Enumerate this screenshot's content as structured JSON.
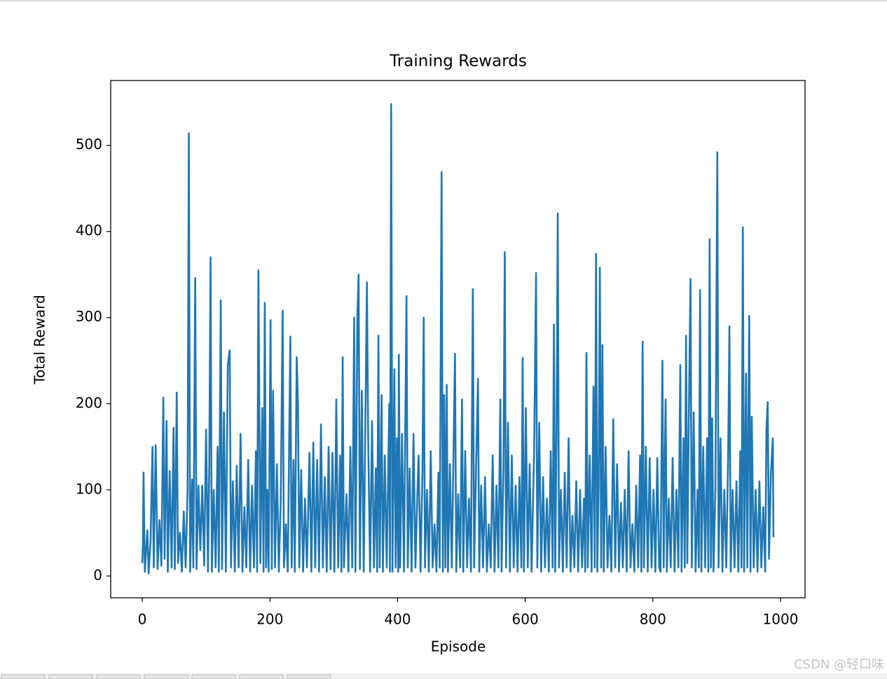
{
  "chart_data": {
    "type": "line",
    "title": "Training Rewards",
    "x_label": "Episode",
    "y_label": "Total Reward",
    "watermark": "CSDN @轻口味",
    "xlim": [
      -49.45,
      1038.45
    ],
    "ylim": [
      -25.3,
      575.3
    ],
    "xticks": [
      0,
      200,
      400,
      600,
      800,
      1000
    ],
    "yticks": [
      0,
      100,
      200,
      300,
      400,
      500
    ],
    "x": [
      0,
      1,
      2,
      4,
      6,
      8,
      10,
      13,
      16,
      18,
      21,
      24,
      27,
      30,
      33,
      35,
      38,
      40,
      43,
      46,
      49,
      51,
      54,
      56,
      59,
      62,
      65,
      68,
      71,
      73,
      75,
      78,
      80,
      83,
      85,
      88,
      91,
      94,
      97,
      100,
      103,
      105,
      107,
      109,
      112,
      115,
      118,
      120,
      123,
      125,
      128,
      131,
      134,
      137,
      139,
      142,
      145,
      148,
      151,
      154,
      157,
      160,
      163,
      166,
      169,
      172,
      175,
      178,
      180,
      182,
      185,
      188,
      190,
      192,
      194,
      196,
      198,
      201,
      203,
      205,
      208,
      211,
      214,
      217,
      220,
      222,
      225,
      228,
      232,
      234,
      237,
      239,
      242,
      244,
      246,
      249,
      252,
      255,
      258,
      262,
      265,
      268,
      271,
      274,
      277,
      280,
      283,
      286,
      289,
      292,
      295,
      298,
      301,
      304,
      307,
      310,
      312,
      314,
      316,
      320,
      323,
      326,
      329,
      332,
      334,
      337,
      339,
      341,
      344,
      347,
      352,
      354,
      357,
      360,
      363,
      366,
      368,
      370,
      372,
      375,
      377,
      380,
      383,
      387,
      388,
      390,
      392,
      395,
      397,
      399,
      401,
      402,
      404,
      407,
      410,
      414,
      416,
      419,
      422,
      425,
      428,
      431,
      433,
      436,
      439,
      441,
      443,
      446,
      449,
      452,
      455,
      458,
      461,
      464,
      466,
      469,
      471,
      473,
      475,
      477,
      479,
      482,
      485,
      488,
      490,
      492,
      495,
      498,
      501,
      503,
      506,
      509,
      512,
      515,
      518,
      520,
      523,
      526,
      528,
      531,
      534,
      537,
      540,
      543,
      546,
      549,
      552,
      555,
      558,
      561,
      563,
      566,
      568,
      570,
      573,
      576,
      579,
      582,
      585,
      588,
      591,
      594,
      596,
      598,
      601,
      604,
      607,
      610,
      614,
      617,
      619,
      622,
      625,
      628,
      631,
      634,
      637,
      640,
      643,
      645,
      647,
      649,
      651,
      653,
      656,
      659,
      662,
      665,
      668,
      671,
      674,
      677,
      680,
      683,
      686,
      689,
      692,
      694,
      696,
      698,
      701,
      704,
      707,
      709,
      711,
      713,
      715,
      717,
      719,
      721,
      723,
      726,
      729,
      732,
      735,
      738,
      741,
      744,
      747,
      750,
      753,
      756,
      759,
      762,
      765,
      768,
      771,
      774,
      777,
      780,
      782,
      784,
      786,
      789,
      792,
      795,
      798,
      801,
      804,
      807,
      810,
      812,
      815,
      817,
      820,
      822,
      825,
      828,
      831,
      834,
      837,
      840,
      843,
      845,
      848,
      850,
      852,
      854,
      856,
      859,
      861,
      864,
      867,
      870,
      872,
      874,
      876,
      879,
      882,
      885,
      887,
      889,
      891,
      893,
      895,
      898,
      901,
      903,
      906,
      909,
      912,
      915,
      918,
      920,
      922,
      925,
      928,
      931,
      934,
      937,
      939,
      941,
      943,
      946,
      948,
      951,
      953,
      955,
      958,
      961,
      964,
      967,
      970,
      973,
      976,
      978,
      980,
      982,
      985,
      988,
      989
    ],
    "series": [
      {
        "name": "Total Reward",
        "color": "#1f77b4",
        "values": [
          15,
          35,
          120,
          5,
          30,
          53,
          3,
          40,
          150,
          10,
          152,
          8,
          65,
          12,
          207,
          20,
          180,
          5,
          122,
          10,
          172,
          8,
          213,
          15,
          50,
          5,
          75,
          10,
          100,
          514,
          5,
          112,
          10,
          346,
          8,
          105,
          30,
          105,
          12,
          170,
          5,
          130,
          370,
          5,
          100,
          10,
          150,
          5,
          320,
          8,
          190,
          5,
          245,
          262,
          10,
          110,
          5,
          128,
          10,
          165,
          5,
          80,
          10,
          135,
          5,
          105,
          10,
          145,
          5,
          355,
          15,
          195,
          5,
          317,
          10,
          100,
          5,
          297,
          8,
          215,
          10,
          130,
          5,
          90,
          308,
          10,
          60,
          5,
          278,
          10,
          135,
          5,
          254,
          197,
          10,
          123,
          5,
          90,
          10,
          143,
          5,
          155,
          10,
          135,
          5,
          176,
          10,
          115,
          5,
          150,
          8,
          143,
          5,
          205,
          10,
          140,
          5,
          254,
          10,
          95,
          5,
          150,
          10,
          300,
          5,
          302,
          350,
          8,
          215,
          5,
          341,
          160,
          5,
          180,
          10,
          125,
          5,
          279,
          10,
          210,
          5,
          140,
          10,
          200,
          5,
          548,
          5,
          240,
          10,
          160,
          5,
          257,
          10,
          165,
          5,
          325,
          10,
          125,
          5,
          165,
          10,
          95,
          140,
          5,
          120,
          300,
          10,
          100,
          5,
          145,
          10,
          60,
          5,
          120,
          10,
          469,
          5,
          210,
          10,
          222,
          5,
          130,
          10,
          160,
          258,
          5,
          95,
          10,
          205,
          5,
          145,
          10,
          90,
          5,
          333,
          10,
          125,
          229,
          5,
          105,
          10,
          115,
          5,
          60,
          10,
          140,
          5,
          105,
          10,
          205,
          5,
          130,
          376,
          10,
          178,
          5,
          140,
          10,
          105,
          5,
          115,
          10,
          253,
          5,
          195,
          10,
          130,
          5,
          145,
          352,
          10,
          178,
          5,
          115,
          10,
          90,
          5,
          145,
          10,
          292,
          5,
          160,
          421,
          10,
          100,
          5,
          120,
          10,
          160,
          5,
          70,
          10,
          110,
          5,
          100,
          10,
          90,
          5,
          259,
          10,
          140,
          5,
          220,
          10,
          374,
          5,
          100,
          358,
          10,
          268,
          5,
          150,
          10,
          70,
          5,
          182,
          10,
          130,
          5,
          85,
          10,
          100,
          5,
          145,
          10,
          60,
          5,
          105,
          10,
          140,
          5,
          272,
          10,
          150,
          5,
          137,
          10,
          100,
          5,
          137,
          10,
          5,
          250,
          10,
          205,
          5,
          90,
          10,
          137,
          5,
          100,
          10,
          245,
          5,
          160,
          10,
          279,
          15,
          160,
          345,
          10,
          190,
          5,
          100,
          10,
          332,
          5,
          150,
          10,
          160,
          5,
          391,
          10,
          183,
          5,
          100,
          492,
          10,
          160,
          5,
          100,
          10,
          140,
          290,
          5,
          100,
          10,
          110,
          5,
          145,
          10,
          405,
          5,
          235,
          10,
          302,
          5,
          185,
          10,
          100,
          5,
          110,
          10,
          80,
          5,
          170,
          202,
          20,
          120,
          160,
          45
        ]
      }
    ]
  }
}
